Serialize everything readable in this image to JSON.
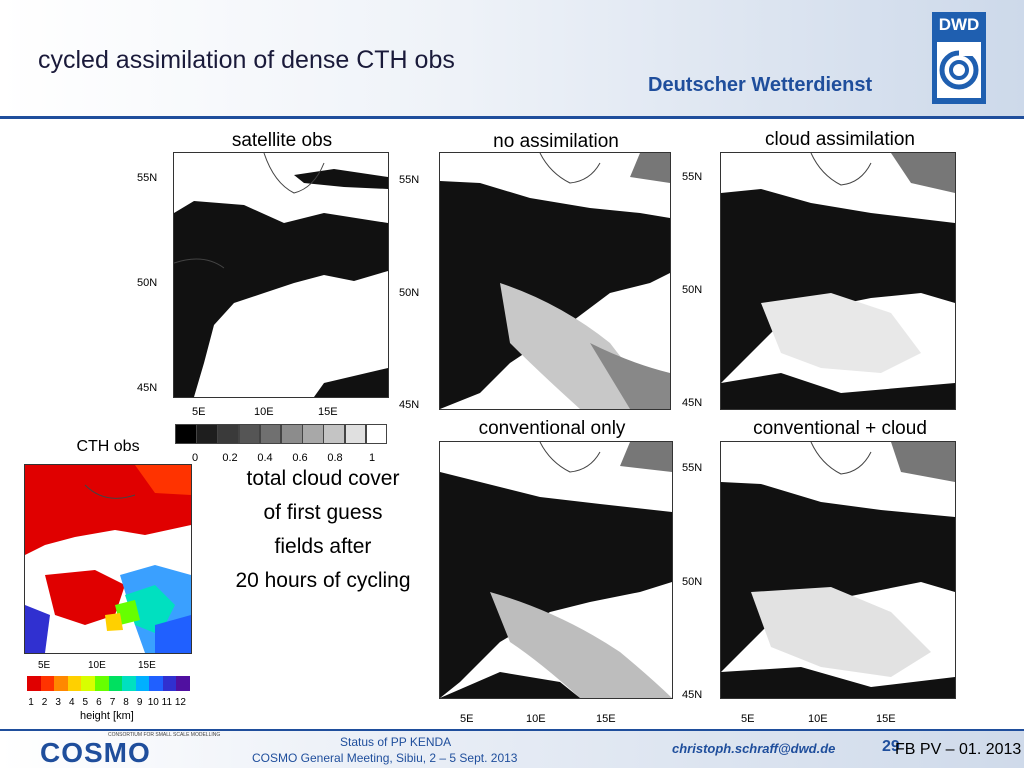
{
  "header": {
    "title": "cycled assimilation of dense CTH obs",
    "organization": "Deutscher Wetterdienst",
    "logo_text": "DWD",
    "brand_color": "#1f4e9c"
  },
  "panels": {
    "satellite_obs": "satellite obs",
    "no_assimilation": "no assimilation",
    "cloud_assimilation": "cloud assimilation",
    "conventional_only": "conventional only",
    "conventional_cloud": "conventional + cloud",
    "cth_obs": "CTH obs"
  },
  "axes": {
    "lat": [
      "55N",
      "50N",
      "45N"
    ],
    "lon": [
      "5E",
      "10E",
      "15E"
    ]
  },
  "gray_colorbar": {
    "labels": [
      "0",
      "0.2",
      "0.4",
      "0.6",
      "0.8",
      "1"
    ],
    "colors": [
      "#000000",
      "#1e1e1e",
      "#3a3a3a",
      "#555555",
      "#707070",
      "#8c8c8c",
      "#a8a8a8",
      "#c4c4c4",
      "#e0e0e0",
      "#ffffff"
    ]
  },
  "height_colorbar": {
    "labels": [
      "1",
      "2",
      "3",
      "4",
      "5",
      "6",
      "7",
      "8",
      "9",
      "10",
      "11",
      "12"
    ],
    "unit_label": "height [km]",
    "colors": [
      "#e00000",
      "#ff3300",
      "#ff8800",
      "#ffd000",
      "#d8ff00",
      "#66ff00",
      "#00e060",
      "#00e0c0",
      "#00b0ff",
      "#2060ff",
      "#3030d0",
      "#5010a0"
    ]
  },
  "caption": {
    "lines": [
      "total cloud cover",
      "of first guess",
      "fields after",
      "20 hours of cycling"
    ]
  },
  "footer": {
    "logo_text": "COSMO",
    "logo_subtitle": "CONSORTIUM FOR SMALL SCALE MODELLING",
    "line1": "Status of PP KENDA",
    "line2": "COSMO General Meeting, Sibiu, 2 – 5 Sept. 2013",
    "email": "christoph.schraff@dwd.de",
    "page": "29",
    "suffix": "FB PV – 01. 2013"
  }
}
